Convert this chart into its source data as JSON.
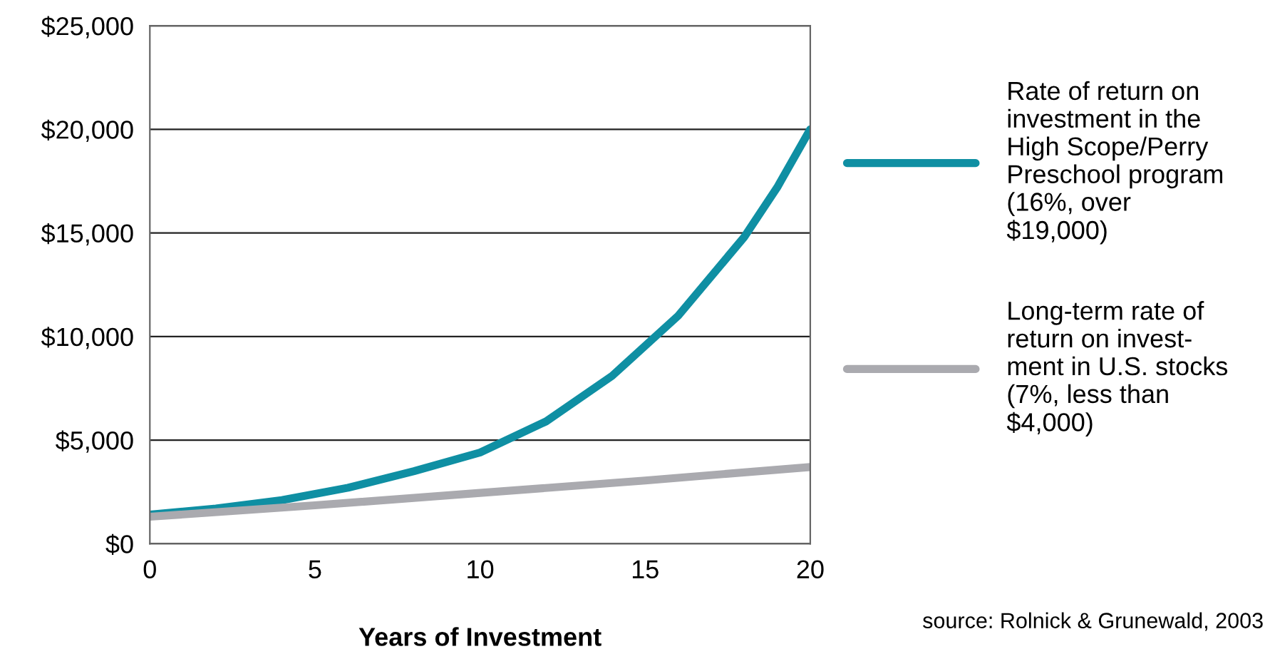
{
  "chart_data": {
    "type": "line",
    "xlabel": "Years of Investment",
    "xlim": [
      0,
      20
    ],
    "xticks": [
      0,
      5,
      10,
      15,
      20
    ],
    "ylim": [
      0,
      25000
    ],
    "yticks": [
      {
        "value": 0,
        "label": "$0"
      },
      {
        "value": 5000,
        "label": "$5,000"
      },
      {
        "value": 10000,
        "label": "$10,000"
      },
      {
        "value": 15000,
        "label": "$15,000"
      },
      {
        "value": 20000,
        "label": "$20,000"
      },
      {
        "value": 25000,
        "label": "$25,000"
      }
    ],
    "grid": "y",
    "legend": "right",
    "marker": "none",
    "line_style": "solid",
    "series": [
      {
        "name": "Rate of return on\ninvestment in the\nHigh Scope/Perry\nPreschool program\n(16%, over\n$19,000)",
        "color": "#0f8fa3",
        "x": [
          0,
          2,
          4,
          6,
          8,
          10,
          12,
          14,
          16,
          18,
          19,
          20
        ],
        "values": [
          1400,
          1700,
          2100,
          2700,
          3500,
          4400,
          5900,
          8100,
          11000,
          14800,
          17200,
          20000
        ]
      },
      {
        "name": "Long-term rate of\nreturn on invest-\nment in U.S. stocks\n(7%, less than\n$4,000)",
        "color": "#aaaaaf",
        "x": [
          0,
          5,
          10,
          15,
          20
        ],
        "values": [
          1300,
          1850,
          2450,
          3050,
          3700
        ]
      }
    ],
    "annotations": [
      "source: Rolnick & Grunewald, 2003"
    ]
  }
}
